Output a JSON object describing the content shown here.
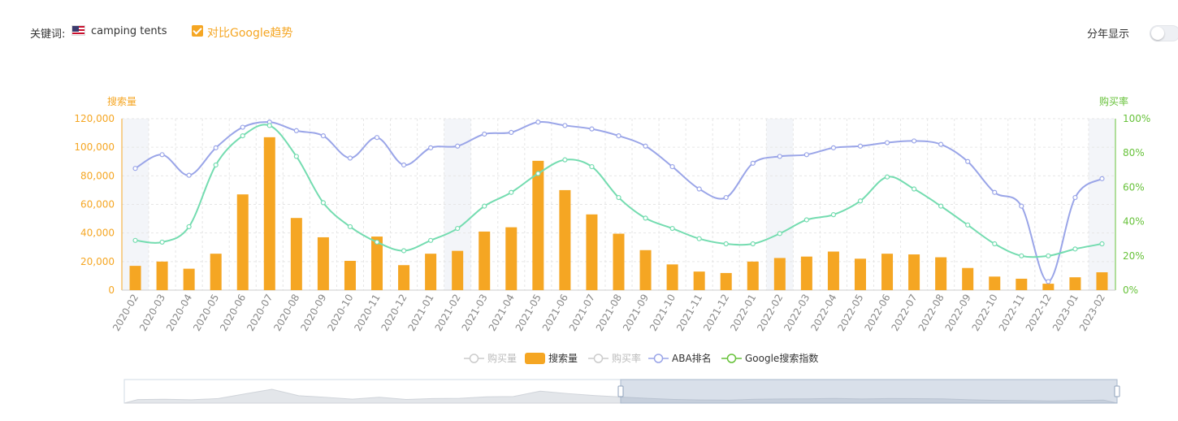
{
  "controls": {
    "keyword_label": "关键词:",
    "keyword": "camping tents",
    "keyword_flag": "us-flag-icon",
    "compare_label": "对比Google趋势",
    "compare_checked": true,
    "year_split_label": "分年显示",
    "year_split_on": false
  },
  "colors": {
    "search_volume": "#f5a623",
    "aba_rank": "#9aa5e8",
    "google_index": "#74dcb0",
    "left_axis": "#f5a623",
    "right_axis": "#67c23a",
    "grid": "#e6e6e6",
    "shade": "#f3f5f9",
    "inactive": "#cccccc"
  },
  "chart_data": {
    "type": "bar",
    "categories": [
      "2020-02",
      "2020-03",
      "2020-04",
      "2020-05",
      "2020-06",
      "2020-07",
      "2020-08",
      "2020-09",
      "2020-10",
      "2020-11",
      "2020-12",
      "2021-01",
      "2021-02",
      "2021-03",
      "2021-04",
      "2021-05",
      "2021-06",
      "2021-07",
      "2021-08",
      "2021-09",
      "2021-10",
      "2021-11",
      "2021-12",
      "2022-01",
      "2022-02",
      "2022-03",
      "2022-04",
      "2022-05",
      "2022-06",
      "2022-07",
      "2022-08",
      "2022-09",
      "2022-10",
      "2022-11",
      "2022-12",
      "2023-01",
      "2023-02"
    ],
    "y_left": {
      "label": "搜索量",
      "min": 0,
      "max": 120000,
      "ticks": [
        "0",
        "20,000",
        "40,000",
        "60,000",
        "80,000",
        "100,000",
        "120,000"
      ]
    },
    "y_right": {
      "label": "购买率",
      "min": 0,
      "max": 100,
      "ticks": [
        "0%",
        "20%",
        "40%",
        "60%",
        "80%",
        "100%"
      ]
    },
    "series": [
      {
        "name": "搜索量",
        "type": "bar",
        "axis": "left",
        "values": [
          17000,
          20000,
          15000,
          25500,
          67000,
          107000,
          50500,
          37000,
          20500,
          37500,
          17500,
          25500,
          27500,
          41000,
          44000,
          90500,
          70000,
          53000,
          39500,
          28000,
          18000,
          13000,
          12000,
          20000,
          22500,
          23500,
          27000,
          22000,
          25500,
          25000,
          23000,
          15500,
          9500,
          8000,
          4500,
          9000,
          12500
        ]
      },
      {
        "name": "ABA排名",
        "type": "line",
        "axis": "right",
        "values": [
          71,
          79,
          67,
          83,
          95,
          98,
          93,
          90,
          77,
          89,
          73,
          83,
          84,
          91,
          92,
          98,
          96,
          94,
          90,
          84,
          72,
          59,
          54,
          74,
          78,
          79,
          83,
          84,
          86,
          87,
          85,
          75,
          57,
          49,
          5,
          54,
          65
        ]
      },
      {
        "name": "Google搜索指数",
        "type": "line",
        "axis": "right",
        "values": [
          29,
          28,
          37,
          73,
          90,
          96,
          78,
          51,
          37,
          28,
          23,
          29,
          36,
          49,
          57,
          68,
          76,
          72,
          54,
          42,
          36,
          30,
          27,
          27,
          33,
          41,
          44,
          52,
          66,
          59,
          49,
          38,
          27,
          20,
          20,
          24,
          27
        ]
      }
    ],
    "legend": [
      {
        "name": "购买量",
        "active": false,
        "shape": "line"
      },
      {
        "name": "搜索量",
        "active": true,
        "shape": "bar"
      },
      {
        "name": "购买率",
        "active": false,
        "shape": "line"
      },
      {
        "name": "ABA排名",
        "active": true,
        "shape": "line"
      },
      {
        "name": "Google搜索指数",
        "active": true,
        "shape": "line"
      }
    ],
    "legend_position": "bottom-center",
    "shaded_months": [
      "2020-02",
      "2021-02",
      "2022-02",
      "2023-02"
    ],
    "grid": true,
    "data_zoom": {
      "selected_start_fraction": 0.5,
      "selected_end_fraction": 1.0
    }
  }
}
